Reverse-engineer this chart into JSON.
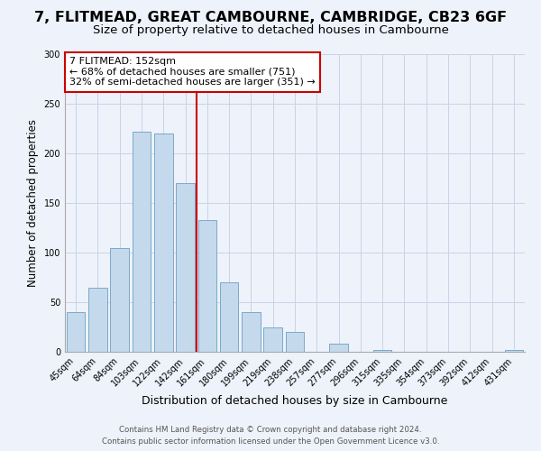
{
  "title1": "7, FLITMEAD, GREAT CAMBOURNE, CAMBRIDGE, CB23 6GF",
  "title2": "Size of property relative to detached houses in Cambourne",
  "xlabel": "Distribution of detached houses by size in Cambourne",
  "ylabel": "Number of detached properties",
  "bar_labels": [
    "45sqm",
    "64sqm",
    "84sqm",
    "103sqm",
    "122sqm",
    "142sqm",
    "161sqm",
    "180sqm",
    "199sqm",
    "219sqm",
    "238sqm",
    "257sqm",
    "277sqm",
    "296sqm",
    "315sqm",
    "335sqm",
    "354sqm",
    "373sqm",
    "392sqm",
    "412sqm",
    "431sqm"
  ],
  "bar_values": [
    40,
    65,
    105,
    222,
    220,
    170,
    133,
    70,
    40,
    25,
    20,
    0,
    8,
    0,
    2,
    0,
    0,
    0,
    0,
    0,
    2
  ],
  "bar_color": "#c5d9ed",
  "bar_edge_color": "#7aaac8",
  "vline_x": 5.5,
  "vline_color": "#cc0000",
  "annotation_title": "7 FLITMEAD: 152sqm",
  "annotation_line1": "← 68% of detached houses are smaller (751)",
  "annotation_line2": "32% of semi-detached houses are larger (351) →",
  "annotation_box_color": "#ffffff",
  "annotation_box_edge": "#cc0000",
  "ylim": [
    0,
    300
  ],
  "yticks": [
    0,
    50,
    100,
    150,
    200,
    250,
    300
  ],
  "footnote1": "Contains HM Land Registry data © Crown copyright and database right 2024.",
  "footnote2": "Contains public sector information licensed under the Open Government Licence v3.0.",
  "background_color": "#eef2fa",
  "plot_bg_color": "#eef2fa",
  "grid_color": "#c8d4e8",
  "title1_fontsize": 11.5,
  "title2_fontsize": 9.5,
  "ylabel_fontsize": 8.5,
  "xlabel_fontsize": 9,
  "tick_fontsize": 7,
  "annot_fontsize": 8
}
